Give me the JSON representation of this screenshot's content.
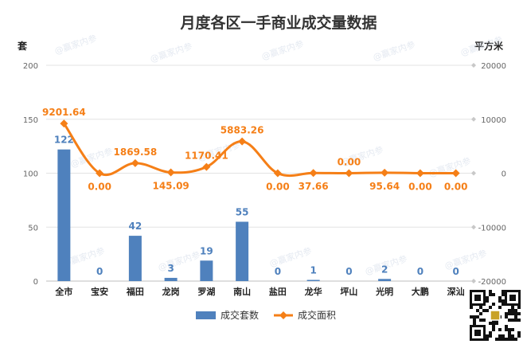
{
  "chart_data": {
    "type": "bar+line",
    "title": "月度各区一手商业成交量数据",
    "categories": [
      "全市",
      "宝安",
      "福田",
      "龙岗",
      "罗湖",
      "南山",
      "盐田",
      "龙华",
      "坪山",
      "光明",
      "大鹏",
      "深汕"
    ],
    "left_axis": {
      "unit": "套",
      "range": [
        0,
        200
      ],
      "ticks": [
        0,
        50,
        100,
        150,
        200
      ]
    },
    "right_axis": {
      "unit": "平方米",
      "range": [
        -20000,
        20000
      ],
      "ticks": [
        -20000,
        -10000,
        0,
        10000,
        20000
      ]
    },
    "series": [
      {
        "name": "成交套数",
        "kind": "bar",
        "axis": "left",
        "color": "#4f81bd",
        "values": [
          122,
          0,
          42,
          3,
          19,
          55,
          0,
          1,
          0,
          2,
          0,
          0
        ],
        "labels": [
          "122",
          "0",
          "42",
          "3",
          "19",
          "55",
          "0",
          "1",
          "0",
          "2",
          "0",
          "0"
        ]
      },
      {
        "name": "成交面积",
        "kind": "line",
        "axis": "right",
        "color": "#f57f17",
        "values": [
          9201.64,
          0,
          1869.58,
          145.09,
          1170.41,
          5883.26,
          0,
          37.66,
          0,
          95.64,
          0,
          0
        ],
        "labels": [
          "9201.64",
          "0.00",
          "1869.58",
          "145.09",
          "1170.41",
          "5883.26",
          "0.00",
          "37.66",
          "0.00",
          "95.64",
          "0.00",
          "0.00"
        ]
      }
    ],
    "grid": true,
    "legend": "bottom-center"
  },
  "watermark": "@赢家内参"
}
